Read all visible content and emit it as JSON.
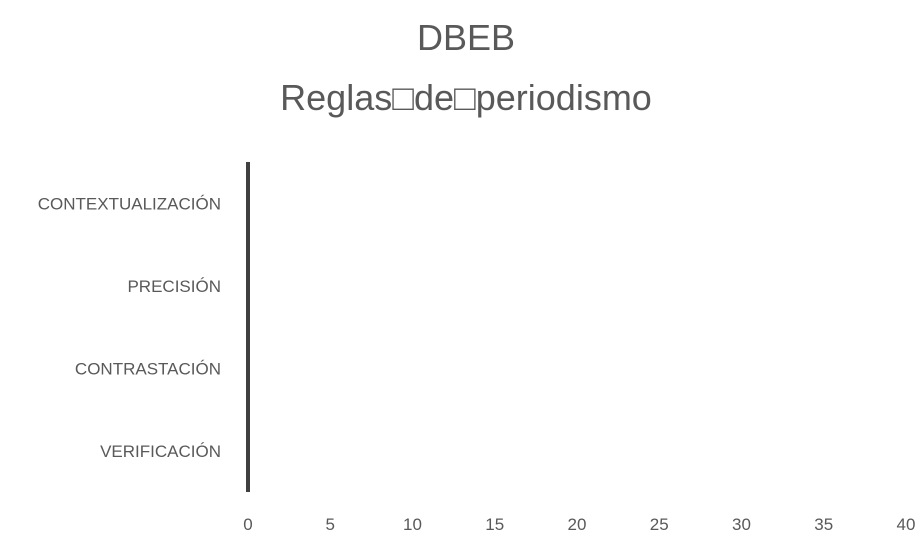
{
  "chart_data": {
    "type": "bar",
    "orientation": "horizontal",
    "title": "DBEB",
    "subtitle": "Reglas□de□periodismo",
    "categories": [
      "VERIFICACIÓN",
      "CONTRASTACIÓN",
      "PRECISIÓN",
      "CONTEXTUALIZACIÓN"
    ],
    "values": [
      0,
      0,
      0,
      0
    ],
    "x_ticks": [
      "0",
      "5",
      "10",
      "15",
      "20",
      "25",
      "30",
      "35",
      "40"
    ],
    "xlim": [
      0,
      40
    ],
    "grid": false,
    "legend": "none",
    "colors": {
      "text": "#595959",
      "axis": "#404040",
      "bar": "#4472C4"
    }
  }
}
